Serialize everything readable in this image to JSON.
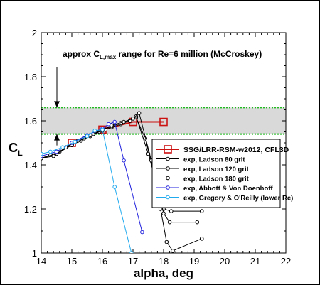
{
  "chart_data": {
    "type": "line",
    "xlabel": "alpha, deg",
    "ylabel": "C",
    "ylabel_subscript": "L",
    "xlim": [
      14,
      22
    ],
    "ylim": [
      1.0,
      2.0
    ],
    "xticks": [
      14,
      15,
      16,
      17,
      18,
      19,
      20,
      21,
      22
    ],
    "yticks": [
      1,
      1.2,
      1.4,
      1.6,
      1.8,
      2
    ],
    "grid": false,
    "legend_position": "center-right",
    "band": {
      "y_low": 1.54,
      "y_high": 1.66,
      "fill_color": "#d9d9d9",
      "edge_color": "#22bb22",
      "annotation": {
        "prefix": "approx C",
        "sub": "L,max",
        "suffix": " range for Re=6 million (McCroskey)"
      }
    },
    "series": [
      {
        "name": "SSG/LRR-RSM-w2012, CFL3D",
        "color": "#cc1111",
        "marker": "square-open",
        "x": [
          15,
          16,
          17,
          18
        ],
        "y": [
          1.5,
          1.56,
          1.595,
          1.595
        ]
      },
      {
        "name": "exp, Ladson 80 grit",
        "color": "#000000",
        "marker": "circle-open",
        "x": [
          14.0,
          14.3,
          14.6,
          15.0,
          15.3,
          15.6,
          15.9,
          16.1,
          16.3,
          16.6,
          16.9,
          17.1,
          17.4,
          17.8,
          18.0,
          18.25,
          19.25
        ],
        "y": [
          1.43,
          1.445,
          1.46,
          1.49,
          1.51,
          1.53,
          1.55,
          1.56,
          1.57,
          1.585,
          1.6,
          1.615,
          1.52,
          1.3,
          1.2,
          1.19,
          1.19
        ]
      },
      {
        "name": "exp, Ladson 120 grit",
        "color": "#000000",
        "marker": "circle-open",
        "x": [
          14.0,
          14.5,
          15.0,
          15.4,
          15.7,
          16.0,
          16.3,
          16.6,
          16.9,
          17.1,
          17.5,
          17.9,
          18.0,
          18.2,
          19.1
        ],
        "y": [
          1.43,
          1.45,
          1.49,
          1.52,
          1.54,
          1.56,
          1.575,
          1.59,
          1.6,
          1.62,
          1.45,
          1.25,
          1.18,
          1.14,
          1.14
        ]
      },
      {
        "name": "exp, Ladson 180 grit",
        "color": "#000000",
        "marker": "circle-open",
        "x": [
          14.0,
          14.4,
          14.8,
          15.2,
          15.6,
          16.0,
          16.3,
          16.7,
          17.0,
          17.2,
          17.6,
          17.9,
          18.1,
          18.3,
          19.25
        ],
        "y": [
          1.43,
          1.44,
          1.48,
          1.51,
          1.535,
          1.555,
          1.58,
          1.595,
          1.61,
          1.635,
          1.42,
          1.2,
          1.05,
          1.01,
          1.065
        ]
      },
      {
        "name": "exp, Abbott & Von Doenhoff",
        "color": "#2222dd",
        "marker": "circle-open",
        "x": [
          14.0,
          14.5,
          15.0,
          15.5,
          16.0,
          16.2,
          16.4,
          16.7,
          17.3
        ],
        "y": [
          1.44,
          1.46,
          1.5,
          1.535,
          1.565,
          1.585,
          1.595,
          1.42,
          1.095
        ]
      },
      {
        "name": "exp, Gregory & O'Reilly (lower Re)",
        "color": "#22aaee",
        "marker": "circle-open",
        "x": [
          14.0,
          14.3,
          14.7,
          15.1,
          15.5,
          15.75,
          16.0,
          16.4,
          16.95
        ],
        "y": [
          1.45,
          1.46,
          1.48,
          1.505,
          1.53,
          1.555,
          1.56,
          1.3,
          1.0
        ]
      }
    ]
  }
}
